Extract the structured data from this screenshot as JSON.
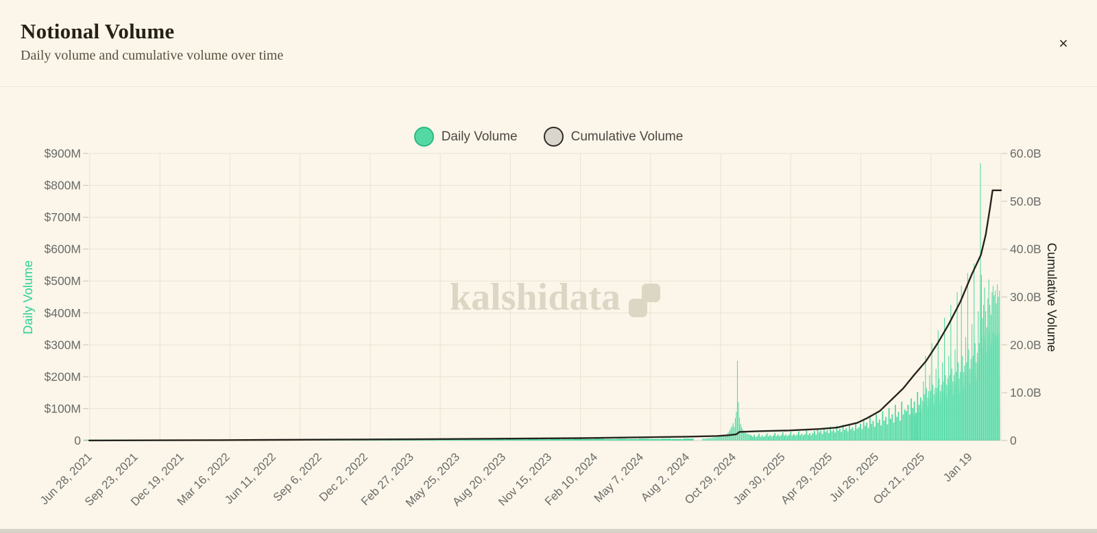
{
  "header": {
    "title": "Notional Volume",
    "subtitle": "Daily volume and cumulative volume over time",
    "close_label": "×"
  },
  "legend": {
    "items": [
      {
        "label": "Daily Volume",
        "swatch_fill": "#54D9A4",
        "swatch_border": "#2BB886"
      },
      {
        "label": "Cumulative Volume",
        "swatch_fill": "#D9D5CC",
        "swatch_border": "#2E2B26"
      }
    ]
  },
  "watermark": {
    "text": "kalshidata",
    "logo": "two-step-squares-icon"
  },
  "colors": {
    "background": "#FBF6E9",
    "divider": "#ECE5D3",
    "grid": "#EAE3D2",
    "axis_text": "#6A6A6A",
    "tick_dash": "#C9C3B2",
    "bar": "#3FD79D",
    "bar_soft": "#97E9CB",
    "line": "#26231E",
    "watermark": "#DCD6C5",
    "left_axis_title": "#2ECF97",
    "right_axis_title": "#1D1B17",
    "baseline": "#D9D3C2"
  },
  "chart_data": {
    "type": "bar",
    "subtype": "combo-bar-line-dual-axis",
    "title": "Notional Volume",
    "x_domain": [
      "2021-06-28",
      "2026-03-20"
    ],
    "x_ticks": [
      {
        "label": "Jun 28, 2021",
        "date": "2021-06-28"
      },
      {
        "label": "Sep 23, 2021",
        "date": "2021-09-23"
      },
      {
        "label": "Dec 19, 2021",
        "date": "2021-12-19"
      },
      {
        "label": "Mar 16, 2022",
        "date": "2022-03-16"
      },
      {
        "label": "Jun 11, 2022",
        "date": "2022-06-11"
      },
      {
        "label": "Sep 6, 2022",
        "date": "2022-09-06"
      },
      {
        "label": "Dec 2, 2022",
        "date": "2022-12-02"
      },
      {
        "label": "Feb 27, 2023",
        "date": "2023-02-27"
      },
      {
        "label": "May 25, 2023",
        "date": "2023-05-25"
      },
      {
        "label": "Aug 20, 2023",
        "date": "2023-08-20"
      },
      {
        "label": "Nov 15, 2023",
        "date": "2023-11-15"
      },
      {
        "label": "Feb 10, 2024",
        "date": "2024-02-10"
      },
      {
        "label": "May 7, 2024",
        "date": "2024-05-07"
      },
      {
        "label": "Aug 2, 2024",
        "date": "2024-08-02"
      },
      {
        "label": "Oct 29, 2024",
        "date": "2024-10-29"
      },
      {
        "label": "Jan 30, 2025",
        "date": "2025-01-30"
      },
      {
        "label": "Apr 29, 2025",
        "date": "2025-04-29"
      },
      {
        "label": "Jul 26, 2025",
        "date": "2025-07-26"
      },
      {
        "label": "Oct 21, 2025",
        "date": "2025-10-21"
      },
      {
        "label": "Jan 19",
        "date": "2026-01-19"
      }
    ],
    "left_axis": {
      "label": "Daily Volume",
      "unit": "$M",
      "range": [
        0,
        900
      ],
      "ticks": [
        "$900M",
        "$800M",
        "$700M",
        "$600M",
        "$500M",
        "$400M",
        "$300M",
        "$200M",
        "$100M",
        "0"
      ]
    },
    "right_axis": {
      "label": "Cumulative Volume",
      "unit": "$B",
      "range": [
        0,
        60
      ],
      "ticks": [
        "60.0B",
        "50.0B",
        "40.0B",
        "30.0B",
        "20.0B",
        "10.0B",
        "0"
      ]
    },
    "daily_volume_bars": {
      "unit": "$M",
      "note": "daily notional volume, values estimated from pixels; groups expand as start date + i*step_days",
      "groups": [
        {
          "start": "2021-06-28",
          "step_days": 21,
          "values": [
            0.3,
            0.4,
            0.3,
            0.5,
            0.4,
            0.6,
            0.5,
            0.6,
            0.7,
            0.8,
            0.7,
            0.9,
            1.0,
            0.9,
            1.2,
            1.1,
            1.4,
            1.2,
            1.6,
            1.8,
            1.5,
            2.0,
            1.8,
            2.2,
            2.0,
            2.4,
            2.2,
            2.6,
            2.4,
            2.8
          ]
        },
        {
          "start": "2023-02-27",
          "step_days": 21,
          "values": [
            2.5,
            3.0,
            2.7,
            3.4,
            3.0,
            3.8,
            3.3,
            4.0,
            3.5,
            4.2,
            3.6,
            4.4,
            3.8,
            4.6,
            4.0,
            4.8,
            4.2,
            5.0,
            4.3,
            5.2,
            4.5,
            5.4,
            4.6,
            5.6,
            4.8,
            5.8
          ]
        },
        {
          "start": "2024-09-01",
          "step_days": 2,
          "values": [
            5,
            6,
            5,
            7,
            6,
            8,
            7,
            8,
            7,
            9,
            8,
            10,
            9,
            11,
            10,
            12,
            11,
            13,
            12,
            14,
            16,
            15,
            18,
            20,
            24,
            28,
            34,
            40,
            46,
            55,
            42,
            70,
            90,
            250,
            120,
            72,
            52,
            42,
            35,
            30,
            27,
            24,
            22,
            20,
            19,
            18,
            17
          ]
        },
        {
          "start": "2024-12-02",
          "step_days": 3,
          "values": [
            15,
            12,
            18,
            11,
            14,
            21,
            12,
            16,
            11,
            15,
            22,
            13,
            17,
            12,
            16,
            24,
            14,
            18,
            13,
            17,
            26,
            15,
            19,
            14,
            18,
            27,
            16,
            20,
            15,
            19,
            29,
            17,
            21,
            16,
            20,
            31,
            18,
            23,
            17
          ]
        },
        {
          "start": "2025-03-29",
          "step_days": 3,
          "values": [
            24,
            30,
            19,
            36,
            25,
            31,
            21,
            39,
            27,
            33,
            23,
            43,
            29,
            35,
            25,
            46,
            31,
            37,
            27,
            49,
            33,
            39,
            29,
            52,
            35,
            41,
            31,
            55,
            37
          ]
        },
        {
          "start": "2025-06-24",
          "step_days": 3,
          "values": [
            42,
            52,
            36,
            62,
            46,
            56,
            39,
            72,
            52,
            62,
            43,
            82,
            56,
            66,
            47,
            92,
            62,
            74,
            51,
            102,
            68,
            82,
            56,
            112,
            74,
            90,
            62,
            122,
            82,
            97
          ]
        },
        {
          "start": "2025-09-22",
          "step_days": 3,
          "values": [
            92,
            112,
            82,
            132,
            102,
            122,
            87,
            152,
            112,
            135
          ]
        },
        {
          "start": "2025-10-22",
          "step_days": 2,
          "values": [
            125,
            185,
            145,
            265,
            165,
            135,
            155,
            205,
            155,
            305,
            175,
            145,
            165,
            225,
            165,
            345,
            195,
            155,
            175,
            245
          ]
        },
        {
          "start": "2025-12-01",
          "step_days": 2,
          "values": [
            185,
            385,
            205,
            175,
            195,
            265,
            205,
            425,
            225,
            185,
            205,
            285,
            215,
            465,
            245,
            195
          ]
        },
        {
          "start": "2026-01-02",
          "step_days": 2,
          "values": [
            215,
            485,
            265,
            215,
            235,
            325,
            245,
            525,
            285,
            225,
            255,
            365,
            265,
            555,
            305,
            245,
            275,
            405
          ]
        },
        {
          "start": "2026-02-07",
          "step_days": 2,
          "values": [
            305,
            870,
            520,
            385,
            425,
            480,
            405,
            355,
            445,
            505,
            425,
            395,
            465,
            485,
            455
          ]
        },
        {
          "start": "2026-03-09",
          "step_days": 2,
          "values": [
            470,
            430,
            490,
            450,
            470
          ]
        }
      ]
    },
    "cumulative_line": {
      "unit": "$B",
      "note": "cumulative notional volume, anchor points estimated from pixels; flat plateau at right edge ≈ 52.3B",
      "points": [
        [
          "2021-06-28",
          0.02
        ],
        [
          "2022-03-01",
          0.08
        ],
        [
          "2022-10-22",
          0.2
        ],
        [
          "2023-06-01",
          0.33
        ],
        [
          "2024-01-19",
          0.5
        ],
        [
          "2024-08-01",
          0.8
        ],
        [
          "2024-09-28",
          0.95
        ],
        [
          "2024-10-20",
          1.1
        ],
        [
          "2024-11-04",
          1.3
        ],
        [
          "2024-11-10",
          1.8
        ],
        [
          "2024-12-15",
          1.95
        ],
        [
          "2025-02-12",
          2.1
        ],
        [
          "2025-04-10",
          2.4
        ],
        [
          "2025-05-14",
          2.7
        ],
        [
          "2025-06-21",
          3.7
        ],
        [
          "2025-07-10",
          4.7
        ],
        [
          "2025-08-03",
          6.2
        ],
        [
          "2025-09-16",
          10.9
        ],
        [
          "2025-10-05",
          13.5
        ],
        [
          "2025-10-29",
          16.6
        ],
        [
          "2025-11-20",
          20.3
        ],
        [
          "2025-12-11",
          24.3
        ],
        [
          "2026-01-02",
          29.0
        ],
        [
          "2026-01-24",
          34.8
        ],
        [
          "2026-02-10",
          38.8
        ],
        [
          "2026-02-19",
          43.0
        ],
        [
          "2026-02-27",
          48.5
        ],
        [
          "2026-03-04",
          52.3
        ],
        [
          "2026-03-20",
          52.3
        ]
      ]
    },
    "grid": {
      "horizontal": true,
      "vertical": true
    },
    "legend_position": "top-center"
  }
}
